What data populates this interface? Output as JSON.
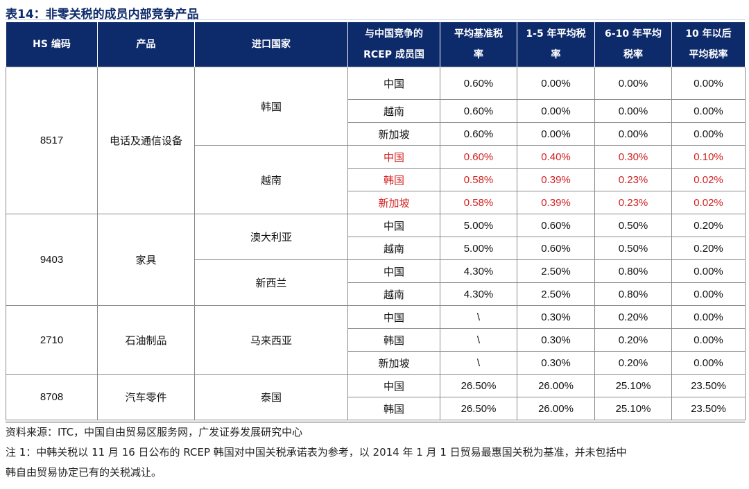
{
  "title": "表14：非零关税的成员内部竞争产品",
  "headers": {
    "hs": "HS 编码",
    "product": "产品",
    "importer": "进口国家",
    "competitor_line1": "与中国竞争的",
    "competitor_line2": "RCEP 成员国",
    "base_line1": "平均基准税",
    "base_line2": "率",
    "y15_line1": "1-5 年平均税",
    "y15_line2": "率",
    "y610_line1": "6-10 年平均",
    "y610_line2": "税率",
    "y10_line1": "10 年以后",
    "y10_line2": "平均税率"
  },
  "groups": [
    {
      "hs": "8517",
      "product": "电话及通信设备"
    },
    {
      "hs": "9403",
      "product": "家具"
    },
    {
      "hs": "2710",
      "product": "石油制品"
    },
    {
      "hs": "8708",
      "product": "汽车零件"
    }
  ],
  "importers": [
    "韩国",
    "越南",
    "澳大利亚",
    "新西兰",
    "马来西亚",
    "泰国"
  ],
  "rows": [
    {
      "country": "中国",
      "base": "0.60%",
      "y15": "0.00%",
      "y610": "0.00%",
      "y10": "0.00%"
    },
    {
      "country": "越南",
      "base": "0.60%",
      "y15": "0.00%",
      "y610": "0.00%",
      "y10": "0.00%"
    },
    {
      "country": "新加坡",
      "base": "0.60%",
      "y15": "0.00%",
      "y610": "0.00%",
      "y10": "0.00%"
    },
    {
      "country": "中国",
      "base": "0.60%",
      "y15": "0.40%",
      "y610": "0.30%",
      "y10": "0.10%"
    },
    {
      "country": "韩国",
      "base": "0.58%",
      "y15": "0.39%",
      "y610": "0.23%",
      "y10": "0.02%"
    },
    {
      "country": "新加坡",
      "base": "0.58%",
      "y15": "0.39%",
      "y610": "0.23%",
      "y10": "0.02%"
    },
    {
      "country": "中国",
      "base": "5.00%",
      "y15": "0.60%",
      "y610": "0.50%",
      "y10": "0.20%"
    },
    {
      "country": "越南",
      "base": "5.00%",
      "y15": "0.60%",
      "y610": "0.50%",
      "y10": "0.20%"
    },
    {
      "country": "中国",
      "base": "4.30%",
      "y15": "2.50%",
      "y610": "0.80%",
      "y10": "0.00%"
    },
    {
      "country": "越南",
      "base": "4.30%",
      "y15": "2.50%",
      "y610": "0.80%",
      "y10": "0.00%"
    },
    {
      "country": "中国",
      "base": "\\",
      "y15": "0.30%",
      "y610": "0.20%",
      "y10": "0.00%"
    },
    {
      "country": "韩国",
      "base": "\\",
      "y15": "0.30%",
      "y610": "0.20%",
      "y10": "0.00%"
    },
    {
      "country": "新加坡",
      "base": "\\",
      "y15": "0.30%",
      "y610": "0.20%",
      "y10": "0.00%"
    },
    {
      "country": "中国",
      "base": "26.50%",
      "y15": "26.00%",
      "y610": "25.10%",
      "y10": "23.50%"
    },
    {
      "country": "韩国",
      "base": "26.50%",
      "y15": "26.00%",
      "y610": "25.10%",
      "y10": "23.50%"
    }
  ],
  "highlight_color": "#d32020",
  "header_color": "#0d2a6b",
  "notes": {
    "source": "资料来源：ITC，中国自由贸易区服务网，广发证券发展研究中心",
    "note1_line1": "注 1：中韩关税以 11 月 16 日公布的 RCEP 韩国对中国关税承诺表为参考，以 2014 年 1 月 1 日贸易最惠国关税为基准，并未包括中",
    "note1_line2": "韩自由贸易协定已有的关税减让。"
  }
}
